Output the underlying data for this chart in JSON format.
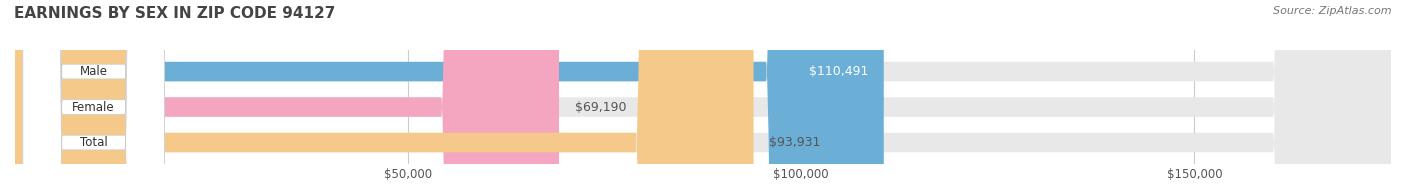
{
  "title": "EARNINGS BY SEX IN ZIP CODE 94127",
  "source": "Source: ZipAtlas.com",
  "categories": [
    "Male",
    "Female",
    "Total"
  ],
  "values": [
    110491,
    69190,
    93931
  ],
  "bar_colors": [
    "#6baed6",
    "#f4a6c0",
    "#f5c98a"
  ],
  "bar_bg_color": "#e8e8e8",
  "label_colors": [
    "#ffffff",
    "#555555",
    "#555555"
  ],
  "x_min": 0,
  "x_max": 175000,
  "x_ticks": [
    50000,
    100000,
    150000
  ],
  "x_tick_labels": [
    "$50,000",
    "$100,000",
    "$150,000"
  ],
  "figsize": [
    14.06,
    1.96
  ],
  "dpi": 100,
  "title_fontsize": 11,
  "bar_height": 0.55,
  "bar_gap": 0.18
}
